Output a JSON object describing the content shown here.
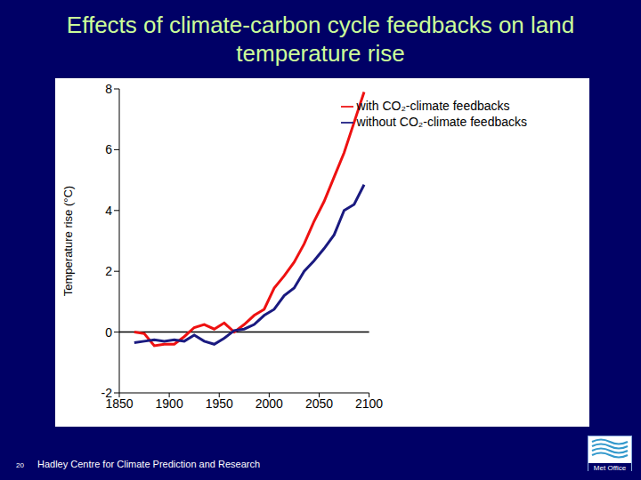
{
  "chart_data": {
    "type": "line",
    "title": "Effects of climate-carbon cycle feedbacks on land temperature rise",
    "y_label": "Temperature rise (°C)",
    "annotations": [
      "Hadley Centre for Climate Prediction and Research",
      "20",
      "Met Office"
    ],
    "x": [
      1865,
      1875,
      1885,
      1895,
      1905,
      1915,
      1925,
      1935,
      1945,
      1955,
      1965,
      1975,
      1985,
      1995,
      2005,
      2015,
      2025,
      2035,
      2045,
      2055,
      2065,
      2075,
      2085,
      2095
    ],
    "series": [
      {
        "name": "with CO₂-climate feedbacks",
        "color": "#ee1111",
        "values": [
          0,
          -0.05,
          -0.45,
          -0.4,
          -0.4,
          -0.15,
          0.15,
          0.25,
          0.1,
          0.3,
          0,
          0.25,
          0.55,
          0.75,
          1.45,
          1.85,
          2.3,
          2.9,
          3.65,
          4.3,
          5.1,
          5.9,
          6.9,
          7.9
        ]
      },
      {
        "name": "without CO₂-climate feedbacks",
        "color": "#1a1a80",
        "values": [
          -0.35,
          -0.3,
          -0.25,
          -0.3,
          -0.25,
          -0.3,
          -0.1,
          -0.3,
          -0.4,
          -0.2,
          0.05,
          0.1,
          0.25,
          0.55,
          0.75,
          1.2,
          1.45,
          2,
          2.35,
          2.75,
          3.2,
          4,
          4.2,
          4.85
        ]
      }
    ],
    "xlim": [
      1850,
      2100
    ],
    "xticks": [
      1850,
      1900,
      1950,
      2000,
      2050,
      2100
    ],
    "ylim": [
      -2,
      8
    ],
    "yticks": [
      -2,
      0,
      2,
      4,
      6,
      8
    ],
    "reference_lines": [
      0
    ],
    "legend": "upper right",
    "grid": false
  }
}
